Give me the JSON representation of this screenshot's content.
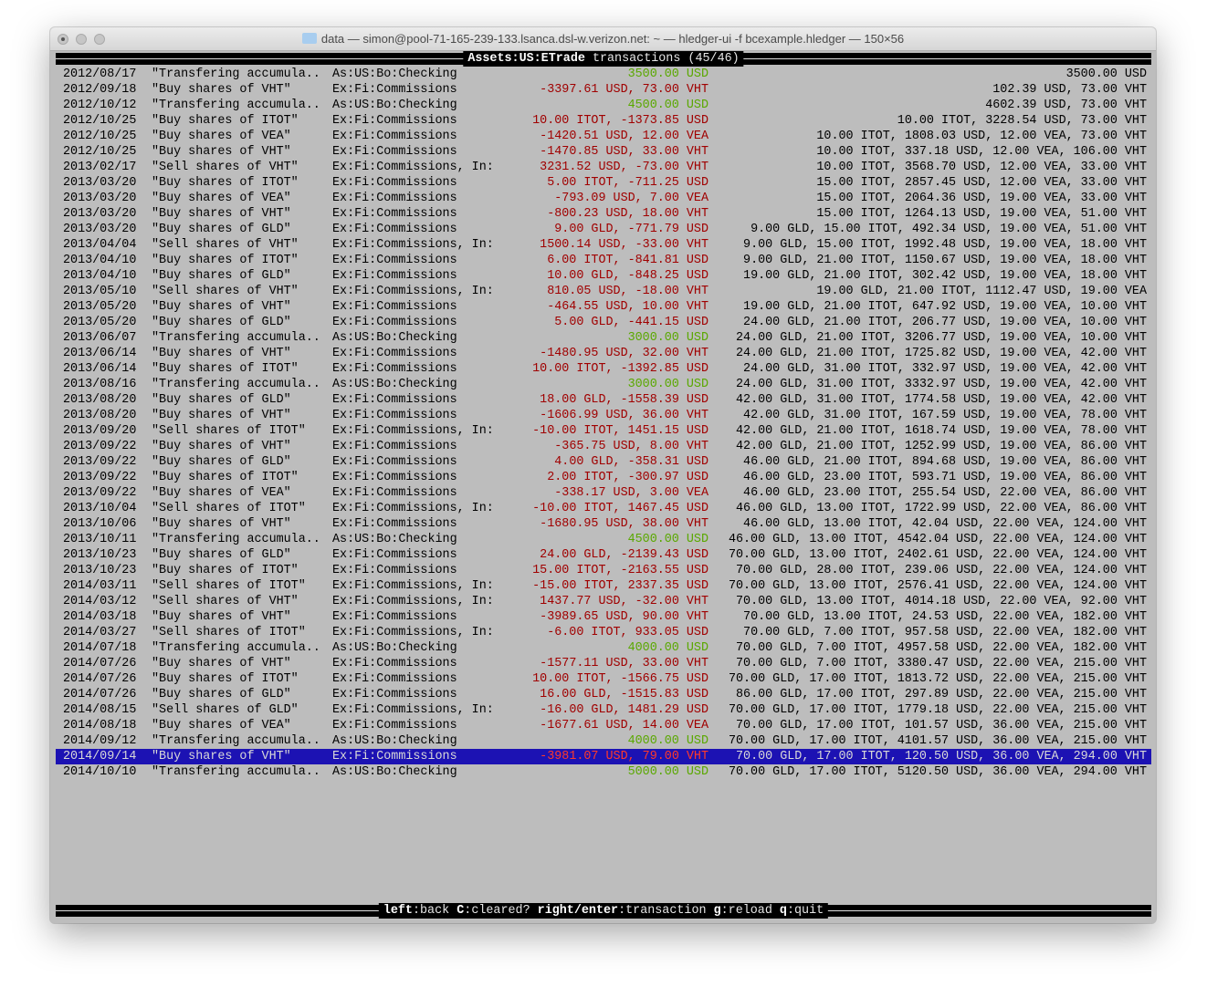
{
  "window": {
    "title": "data — simon@pool-71-165-239-133.lsanca.dsl-w.verizon.net: ~ — hledger-ui -f bcexample.hledger — 150×56",
    "icon": "folder-icon"
  },
  "header": {
    "account": "Assets:US:ETrade",
    "label": "transactions",
    "position": "(45/46)"
  },
  "colors": {
    "negative": "#a00000",
    "positive": "#5aa800",
    "selected_bg": "#1c12b3",
    "background": "#bdbdbd"
  },
  "selected_index": 44,
  "rows": [
    {
      "date": "2012/08/17",
      "desc": "\"Transfering accumula..",
      "account": "As:US:Bo:Checking",
      "amount": "3500.00 USD",
      "sign": "pos",
      "balance": "3500.00 USD"
    },
    {
      "date": "2012/09/18",
      "desc": "\"Buy shares of VHT\"",
      "account": "Ex:Fi:Commissions",
      "amount": "-3397.61 USD, 73.00 VHT",
      "sign": "neg",
      "balance": "102.39 USD, 73.00 VHT"
    },
    {
      "date": "2012/10/12",
      "desc": "\"Transfering accumula..",
      "account": "As:US:Bo:Checking",
      "amount": "4500.00 USD",
      "sign": "pos",
      "balance": "4602.39 USD, 73.00 VHT"
    },
    {
      "date": "2012/10/25",
      "desc": "\"Buy shares of ITOT\"",
      "account": "Ex:Fi:Commissions",
      "amount": "10.00 ITOT, -1373.85 USD",
      "sign": "neg",
      "balance": "10.00 ITOT, 3228.54 USD, 73.00 VHT"
    },
    {
      "date": "2012/10/25",
      "desc": "\"Buy shares of VEA\"",
      "account": "Ex:Fi:Commissions",
      "amount": "-1420.51 USD, 12.00 VEA",
      "sign": "neg",
      "balance": "10.00 ITOT, 1808.03 USD, 12.00 VEA, 73.00 VHT"
    },
    {
      "date": "2012/10/25",
      "desc": "\"Buy shares of VHT\"",
      "account": "Ex:Fi:Commissions",
      "amount": "-1470.85 USD, 33.00 VHT",
      "sign": "neg",
      "balance": "10.00 ITOT, 337.18 USD, 12.00 VEA, 106.00 VHT"
    },
    {
      "date": "2013/02/17",
      "desc": "\"Sell shares of VHT\"",
      "account": "Ex:Fi:Commissions, In:..",
      "amount": "3231.52 USD, -73.00 VHT",
      "sign": "neg",
      "balance": "10.00 ITOT, 3568.70 USD, 12.00 VEA, 33.00 VHT"
    },
    {
      "date": "2013/03/20",
      "desc": "\"Buy shares of ITOT\"",
      "account": "Ex:Fi:Commissions",
      "amount": "5.00 ITOT, -711.25 USD",
      "sign": "neg",
      "balance": "15.00 ITOT, 2857.45 USD, 12.00 VEA, 33.00 VHT"
    },
    {
      "date": "2013/03/20",
      "desc": "\"Buy shares of VEA\"",
      "account": "Ex:Fi:Commissions",
      "amount": "-793.09 USD, 7.00 VEA",
      "sign": "neg",
      "balance": "15.00 ITOT, 2064.36 USD, 19.00 VEA, 33.00 VHT"
    },
    {
      "date": "2013/03/20",
      "desc": "\"Buy shares of VHT\"",
      "account": "Ex:Fi:Commissions",
      "amount": "-800.23 USD, 18.00 VHT",
      "sign": "neg",
      "balance": "15.00 ITOT, 1264.13 USD, 19.00 VEA, 51.00 VHT"
    },
    {
      "date": "2013/03/20",
      "desc": "\"Buy shares of GLD\"",
      "account": "Ex:Fi:Commissions",
      "amount": "9.00 GLD, -771.79 USD",
      "sign": "neg",
      "balance": "9.00 GLD, 15.00 ITOT, 492.34 USD, 19.00 VEA, 51.00 VHT"
    },
    {
      "date": "2013/04/04",
      "desc": "\"Sell shares of VHT\"",
      "account": "Ex:Fi:Commissions, In:..",
      "amount": "1500.14 USD, -33.00 VHT",
      "sign": "neg",
      "balance": "9.00 GLD, 15.00 ITOT, 1992.48 USD, 19.00 VEA, 18.00 VHT"
    },
    {
      "date": "2013/04/10",
      "desc": "\"Buy shares of ITOT\"",
      "account": "Ex:Fi:Commissions",
      "amount": "6.00 ITOT, -841.81 USD",
      "sign": "neg",
      "balance": "9.00 GLD, 21.00 ITOT, 1150.67 USD, 19.00 VEA, 18.00 VHT"
    },
    {
      "date": "2013/04/10",
      "desc": "\"Buy shares of GLD\"",
      "account": "Ex:Fi:Commissions",
      "amount": "10.00 GLD, -848.25 USD",
      "sign": "neg",
      "balance": "19.00 GLD, 21.00 ITOT, 302.42 USD, 19.00 VEA, 18.00 VHT"
    },
    {
      "date": "2013/05/10",
      "desc": "\"Sell shares of VHT\"",
      "account": "Ex:Fi:Commissions, In:..",
      "amount": "810.05 USD, -18.00 VHT",
      "sign": "neg",
      "balance": "19.00 GLD, 21.00 ITOT, 1112.47 USD, 19.00 VEA"
    },
    {
      "date": "2013/05/20",
      "desc": "\"Buy shares of VHT\"",
      "account": "Ex:Fi:Commissions",
      "amount": "-464.55 USD, 10.00 VHT",
      "sign": "neg",
      "balance": "19.00 GLD, 21.00 ITOT, 647.92 USD, 19.00 VEA, 10.00 VHT"
    },
    {
      "date": "2013/05/20",
      "desc": "\"Buy shares of GLD\"",
      "account": "Ex:Fi:Commissions",
      "amount": "5.00 GLD, -441.15 USD",
      "sign": "neg",
      "balance": "24.00 GLD, 21.00 ITOT, 206.77 USD, 19.00 VEA, 10.00 VHT"
    },
    {
      "date": "2013/06/07",
      "desc": "\"Transfering accumula..",
      "account": "As:US:Bo:Checking",
      "amount": "3000.00 USD",
      "sign": "pos",
      "balance": "24.00 GLD, 21.00 ITOT, 3206.77 USD, 19.00 VEA, 10.00 VHT"
    },
    {
      "date": "2013/06/14",
      "desc": "\"Buy shares of VHT\"",
      "account": "Ex:Fi:Commissions",
      "amount": "-1480.95 USD, 32.00 VHT",
      "sign": "neg",
      "balance": "24.00 GLD, 21.00 ITOT, 1725.82 USD, 19.00 VEA, 42.00 VHT"
    },
    {
      "date": "2013/06/14",
      "desc": "\"Buy shares of ITOT\"",
      "account": "Ex:Fi:Commissions",
      "amount": "10.00 ITOT, -1392.85 USD",
      "sign": "neg",
      "balance": "24.00 GLD, 31.00 ITOT, 332.97 USD, 19.00 VEA, 42.00 VHT"
    },
    {
      "date": "2013/08/16",
      "desc": "\"Transfering accumula..",
      "account": "As:US:Bo:Checking",
      "amount": "3000.00 USD",
      "sign": "pos",
      "balance": "24.00 GLD, 31.00 ITOT, 3332.97 USD, 19.00 VEA, 42.00 VHT"
    },
    {
      "date": "2013/08/20",
      "desc": "\"Buy shares of GLD\"",
      "account": "Ex:Fi:Commissions",
      "amount": "18.00 GLD, -1558.39 USD",
      "sign": "neg",
      "balance": "42.00 GLD, 31.00 ITOT, 1774.58 USD, 19.00 VEA, 42.00 VHT"
    },
    {
      "date": "2013/08/20",
      "desc": "\"Buy shares of VHT\"",
      "account": "Ex:Fi:Commissions",
      "amount": "-1606.99 USD, 36.00 VHT",
      "sign": "neg",
      "balance": "42.00 GLD, 31.00 ITOT, 167.59 USD, 19.00 VEA, 78.00 VHT"
    },
    {
      "date": "2013/09/20",
      "desc": "\"Sell shares of ITOT\"",
      "account": "Ex:Fi:Commissions, In:..",
      "amount": "-10.00 ITOT, 1451.15 USD",
      "sign": "neg",
      "balance": "42.00 GLD, 21.00 ITOT, 1618.74 USD, 19.00 VEA, 78.00 VHT"
    },
    {
      "date": "2013/09/22",
      "desc": "\"Buy shares of VHT\"",
      "account": "Ex:Fi:Commissions",
      "amount": "-365.75 USD, 8.00 VHT",
      "sign": "neg",
      "balance": "42.00 GLD, 21.00 ITOT, 1252.99 USD, 19.00 VEA, 86.00 VHT"
    },
    {
      "date": "2013/09/22",
      "desc": "\"Buy shares of GLD\"",
      "account": "Ex:Fi:Commissions",
      "amount": "4.00 GLD, -358.31 USD",
      "sign": "neg",
      "balance": "46.00 GLD, 21.00 ITOT, 894.68 USD, 19.00 VEA, 86.00 VHT"
    },
    {
      "date": "2013/09/22",
      "desc": "\"Buy shares of ITOT\"",
      "account": "Ex:Fi:Commissions",
      "amount": "2.00 ITOT, -300.97 USD",
      "sign": "neg",
      "balance": "46.00 GLD, 23.00 ITOT, 593.71 USD, 19.00 VEA, 86.00 VHT"
    },
    {
      "date": "2013/09/22",
      "desc": "\"Buy shares of VEA\"",
      "account": "Ex:Fi:Commissions",
      "amount": "-338.17 USD, 3.00 VEA",
      "sign": "neg",
      "balance": "46.00 GLD, 23.00 ITOT, 255.54 USD, 22.00 VEA, 86.00 VHT"
    },
    {
      "date": "2013/10/04",
      "desc": "\"Sell shares of ITOT\"",
      "account": "Ex:Fi:Commissions, In:..",
      "amount": "-10.00 ITOT, 1467.45 USD",
      "sign": "neg",
      "balance": "46.00 GLD, 13.00 ITOT, 1722.99 USD, 22.00 VEA, 86.00 VHT"
    },
    {
      "date": "2013/10/06",
      "desc": "\"Buy shares of VHT\"",
      "account": "Ex:Fi:Commissions",
      "amount": "-1680.95 USD, 38.00 VHT",
      "sign": "neg",
      "balance": "46.00 GLD, 13.00 ITOT, 42.04 USD, 22.00 VEA, 124.00 VHT"
    },
    {
      "date": "2013/10/11",
      "desc": "\"Transfering accumula..",
      "account": "As:US:Bo:Checking",
      "amount": "4500.00 USD",
      "sign": "pos",
      "balance": "46.00 GLD, 13.00 ITOT, 4542.04 USD, 22.00 VEA, 124.00 VHT"
    },
    {
      "date": "2013/10/23",
      "desc": "\"Buy shares of GLD\"",
      "account": "Ex:Fi:Commissions",
      "amount": "24.00 GLD, -2139.43 USD",
      "sign": "neg",
      "balance": "70.00 GLD, 13.00 ITOT, 2402.61 USD, 22.00 VEA, 124.00 VHT"
    },
    {
      "date": "2013/10/23",
      "desc": "\"Buy shares of ITOT\"",
      "account": "Ex:Fi:Commissions",
      "amount": "15.00 ITOT, -2163.55 USD",
      "sign": "neg",
      "balance": "70.00 GLD, 28.00 ITOT, 239.06 USD, 22.00 VEA, 124.00 VHT"
    },
    {
      "date": "2014/03/11",
      "desc": "\"Sell shares of ITOT\"",
      "account": "Ex:Fi:Commissions, In:..",
      "amount": "-15.00 ITOT, 2337.35 USD",
      "sign": "neg",
      "balance": "70.00 GLD, 13.00 ITOT, 2576.41 USD, 22.00 VEA, 124.00 VHT"
    },
    {
      "date": "2014/03/12",
      "desc": "\"Sell shares of VHT\"",
      "account": "Ex:Fi:Commissions, In:..",
      "amount": "1437.77 USD, -32.00 VHT",
      "sign": "neg",
      "balance": "70.00 GLD, 13.00 ITOT, 4014.18 USD, 22.00 VEA, 92.00 VHT"
    },
    {
      "date": "2014/03/18",
      "desc": "\"Buy shares of VHT\"",
      "account": "Ex:Fi:Commissions",
      "amount": "-3989.65 USD, 90.00 VHT",
      "sign": "neg",
      "balance": "70.00 GLD, 13.00 ITOT, 24.53 USD, 22.00 VEA, 182.00 VHT"
    },
    {
      "date": "2014/03/27",
      "desc": "\"Sell shares of ITOT\"",
      "account": "Ex:Fi:Commissions, In:..",
      "amount": "-6.00 ITOT, 933.05 USD",
      "sign": "neg",
      "balance": "70.00 GLD, 7.00 ITOT, 957.58 USD, 22.00 VEA, 182.00 VHT"
    },
    {
      "date": "2014/07/18",
      "desc": "\"Transfering accumula..",
      "account": "As:US:Bo:Checking",
      "amount": "4000.00 USD",
      "sign": "pos",
      "balance": "70.00 GLD, 7.00 ITOT, 4957.58 USD, 22.00 VEA, 182.00 VHT"
    },
    {
      "date": "2014/07/26",
      "desc": "\"Buy shares of VHT\"",
      "account": "Ex:Fi:Commissions",
      "amount": "-1577.11 USD, 33.00 VHT",
      "sign": "neg",
      "balance": "70.00 GLD, 7.00 ITOT, 3380.47 USD, 22.00 VEA, 215.00 VHT"
    },
    {
      "date": "2014/07/26",
      "desc": "\"Buy shares of ITOT\"",
      "account": "Ex:Fi:Commissions",
      "amount": "10.00 ITOT, -1566.75 USD",
      "sign": "neg",
      "balance": "70.00 GLD, 17.00 ITOT, 1813.72 USD, 22.00 VEA, 215.00 VHT"
    },
    {
      "date": "2014/07/26",
      "desc": "\"Buy shares of GLD\"",
      "account": "Ex:Fi:Commissions",
      "amount": "16.00 GLD, -1515.83 USD",
      "sign": "neg",
      "balance": "86.00 GLD, 17.00 ITOT, 297.89 USD, 22.00 VEA, 215.00 VHT"
    },
    {
      "date": "2014/08/15",
      "desc": "\"Sell shares of GLD\"",
      "account": "Ex:Fi:Commissions, In:..",
      "amount": "-16.00 GLD, 1481.29 USD",
      "sign": "neg",
      "balance": "70.00 GLD, 17.00 ITOT, 1779.18 USD, 22.00 VEA, 215.00 VHT"
    },
    {
      "date": "2014/08/18",
      "desc": "\"Buy shares of VEA\"",
      "account": "Ex:Fi:Commissions",
      "amount": "-1677.61 USD, 14.00 VEA",
      "sign": "neg",
      "balance": "70.00 GLD, 17.00 ITOT, 101.57 USD, 36.00 VEA, 215.00 VHT"
    },
    {
      "date": "2014/09/12",
      "desc": "\"Transfering accumula..",
      "account": "As:US:Bo:Checking",
      "amount": "4000.00 USD",
      "sign": "pos",
      "balance": "70.00 GLD, 17.00 ITOT, 4101.57 USD, 36.00 VEA, 215.00 VHT"
    },
    {
      "date": "2014/09/14",
      "desc": "\"Buy shares of VHT\"",
      "account": "Ex:Fi:Commissions",
      "amount": "-3981.07 USD, 79.00 VHT",
      "sign": "neg",
      "balance": "70.00 GLD, 17.00 ITOT, 120.50 USD, 36.00 VEA, 294.00 VHT"
    },
    {
      "date": "2014/10/10",
      "desc": "\"Transfering accumula..",
      "account": "As:US:Bo:Checking",
      "amount": "5000.00 USD",
      "sign": "pos",
      "balance": "70.00 GLD, 17.00 ITOT, 5120.50 USD, 36.00 VEA, 294.00 VHT"
    }
  ],
  "footer": [
    {
      "key": "left",
      "action": "back"
    },
    {
      "key": "C",
      "action": "cleared?"
    },
    {
      "key": "right/enter",
      "action": "transaction"
    },
    {
      "key": "g",
      "action": "reload"
    },
    {
      "key": "q",
      "action": "quit"
    }
  ]
}
